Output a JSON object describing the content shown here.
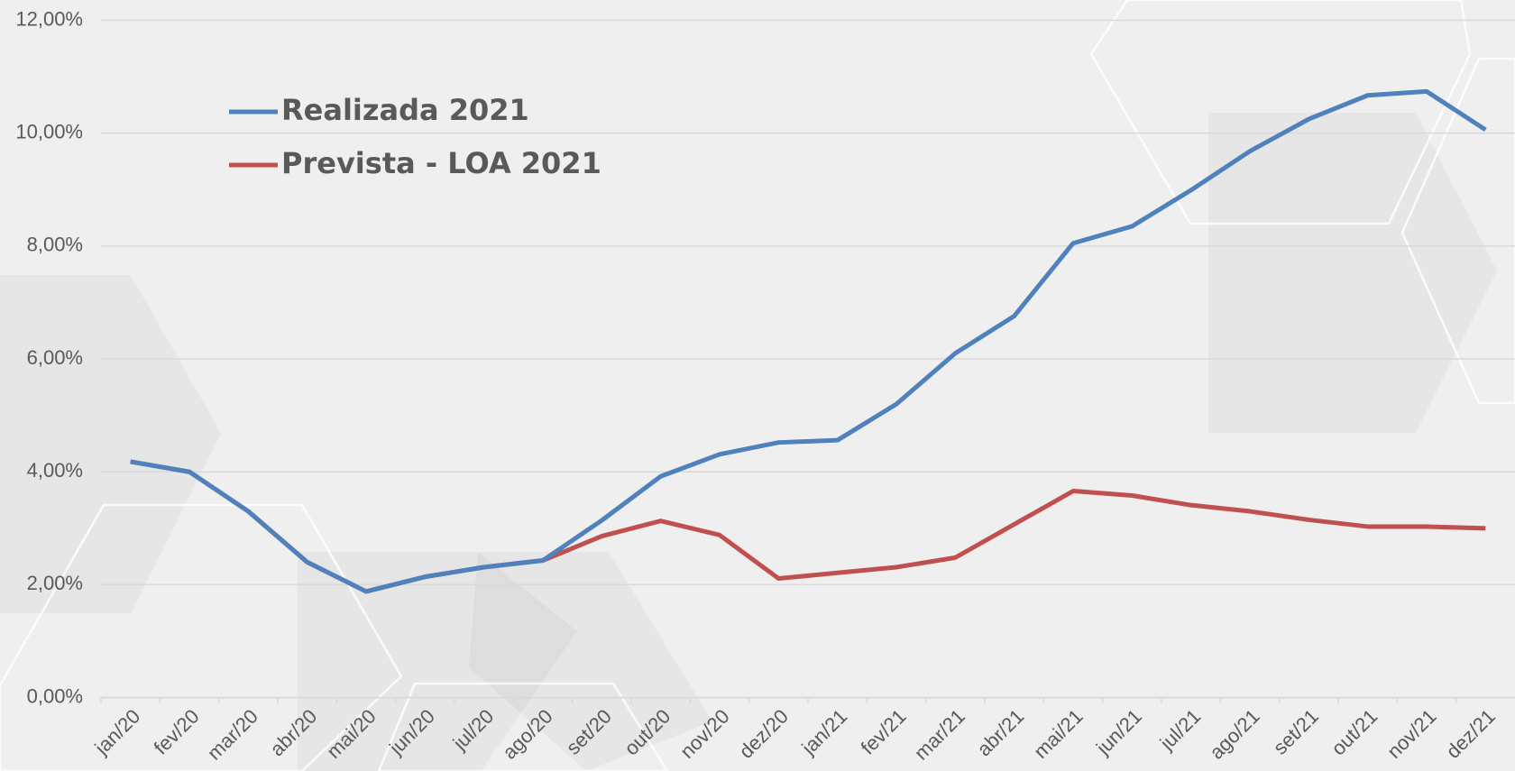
{
  "chart_data": {
    "type": "line",
    "categories": [
      "jan/20",
      "fev/20",
      "mar/20",
      "abr/20",
      "mai/20",
      "jun/20",
      "jul/20",
      "ago/20",
      "set/20",
      "out/20",
      "nov/20",
      "dez/20",
      "jan/21",
      "fev/21",
      "mar/21",
      "abr/21",
      "mai/21",
      "jun/21",
      "jul/21",
      "ago/21",
      "set/21",
      "out/21",
      "nov/21",
      "dez/21"
    ],
    "series": [
      {
        "name": "Realizada 2021",
        "color": "#4f81bd",
        "values": [
          4.18,
          4.0,
          3.3,
          2.4,
          1.88,
          2.14,
          2.31,
          2.43,
          3.14,
          3.92,
          4.31,
          4.52,
          4.56,
          5.2,
          6.1,
          6.76,
          8.05,
          8.35,
          8.99,
          9.68,
          10.25,
          10.67,
          10.74,
          10.06
        ]
      },
      {
        "name": "Prevista - LOA 2021",
        "color": "#c0504d",
        "values": [
          4.18,
          4.0,
          3.3,
          2.4,
          1.88,
          2.14,
          2.31,
          2.43,
          2.86,
          3.13,
          2.88,
          2.11,
          2.21,
          2.31,
          2.48,
          3.07,
          3.66,
          3.58,
          3.41,
          3.3,
          3.15,
          3.03,
          3.03,
          3.0
        ]
      }
    ],
    "ylim": [
      0,
      12
    ],
    "yticks": [
      {
        "value": 0,
        "label": "0,00%"
      },
      {
        "value": 2,
        "label": "2,00%"
      },
      {
        "value": 4,
        "label": "4,00%"
      },
      {
        "value": 6,
        "label": "6,00%"
      },
      {
        "value": 8,
        "label": "8,00%"
      },
      {
        "value": 10,
        "label": "10,00%"
      },
      {
        "value": 12,
        "label": "12,00%"
      }
    ],
    "grid": true,
    "legend": "top-left"
  }
}
